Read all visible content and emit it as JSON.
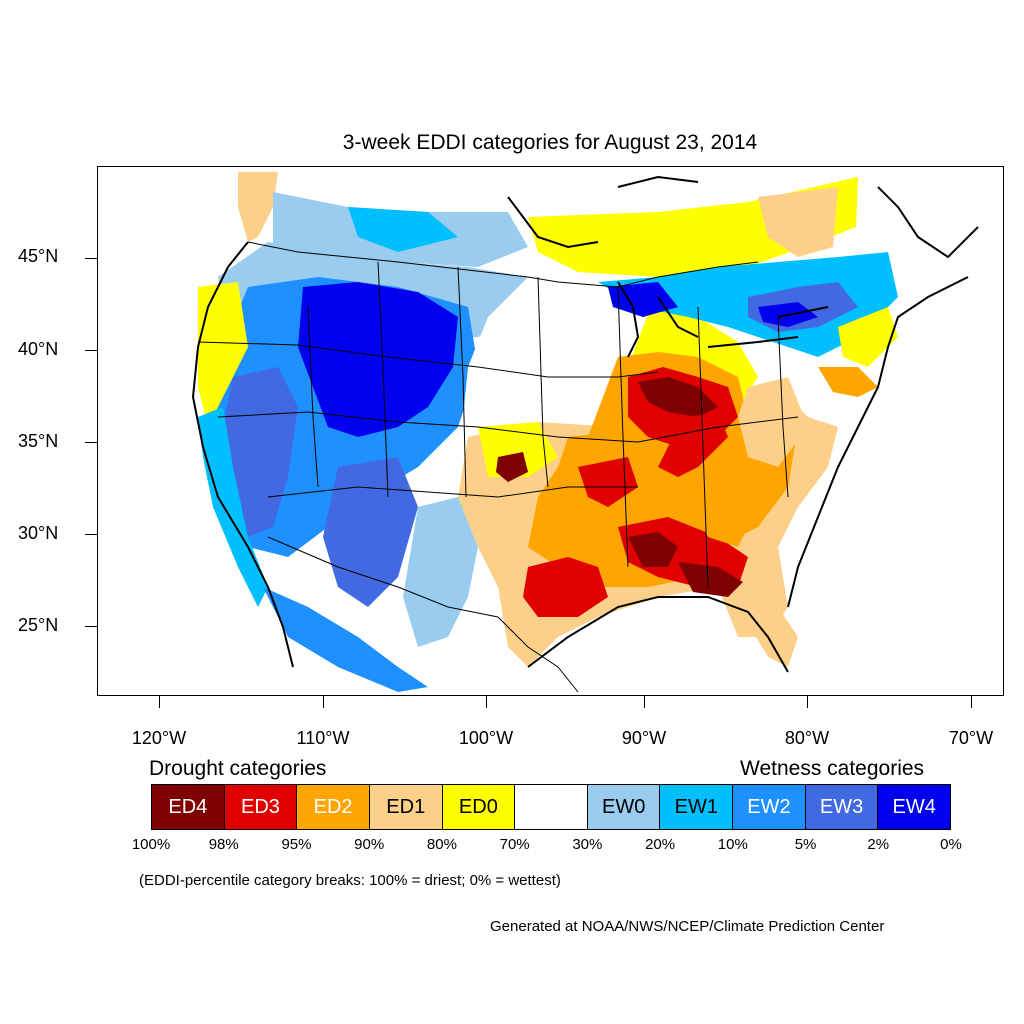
{
  "title": "3-week EDDI categories for August 23, 2014",
  "lat_axis": {
    "labels": [
      "45°N",
      "40°N",
      "35°N",
      "30°N",
      "25°N"
    ]
  },
  "lon_axis": {
    "labels": [
      "120°W",
      "110°W",
      "100°W",
      "90°W",
      "80°W",
      "70°W"
    ]
  },
  "legend": {
    "drought_heading": "Drought categories",
    "wetness_heading": "Wetness categories",
    "categories": [
      {
        "label": "ED4",
        "color": "#7f0000",
        "text_color": "#ffffff"
      },
      {
        "label": "ED3",
        "color": "#e00000",
        "text_color": "#ffffff"
      },
      {
        "label": "ED2",
        "color": "#ffa500",
        "text_color": "#ffffff"
      },
      {
        "label": "ED1",
        "color": "#fdd08a",
        "text_color": "#000000"
      },
      {
        "label": "ED0",
        "color": "#ffff00",
        "text_color": "#000000"
      },
      {
        "label": "",
        "color": "#ffffff",
        "text_color": "#000000"
      },
      {
        "label": "EW0",
        "color": "#99ccee",
        "text_color": "#000000"
      },
      {
        "label": "EW1",
        "color": "#00bfff",
        "text_color": "#000000"
      },
      {
        "label": "EW2",
        "color": "#1e90ff",
        "text_color": "#ffffff"
      },
      {
        "label": "EW3",
        "color": "#4169e1",
        "text_color": "#ffffff"
      },
      {
        "label": "EW4",
        "color": "#0000ee",
        "text_color": "#ffffff"
      }
    ],
    "percentiles": [
      "100%",
      "98%",
      "95%",
      "90%",
      "80%",
      "70%",
      "30%",
      "20%",
      "10%",
      "5%",
      "2%",
      "0%"
    ]
  },
  "note": "(EDDI-percentile category breaks: 100% = driest; 0% = wettest)",
  "credit": "Generated at NOAA/NWS/NCEP/Climate Prediction Center"
}
